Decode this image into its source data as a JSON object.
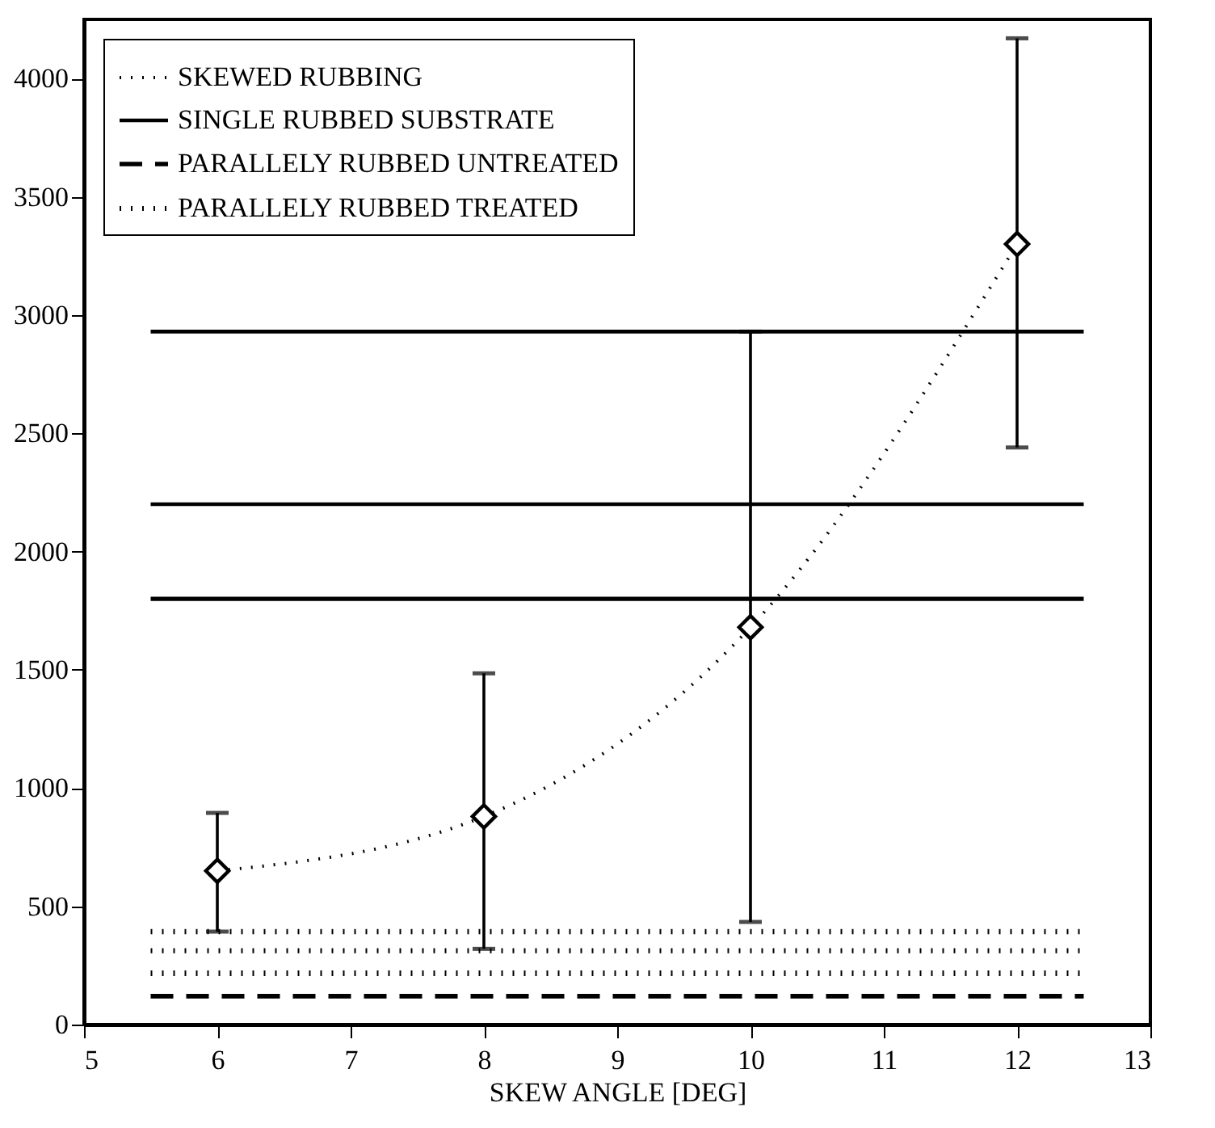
{
  "chart_data": {
    "type": "line",
    "xlabel": "SKEW ANGLE [DEG]",
    "xlim": [
      5,
      13
    ],
    "xticks": [
      5,
      6,
      7,
      8,
      9,
      10,
      11,
      12,
      13
    ],
    "ylim": [
      0,
      4250
    ],
    "yticks": [
      0,
      500,
      1000,
      1500,
      2000,
      2500,
      3000,
      3500,
      4000
    ],
    "legend": "top left",
    "grid": false,
    "series": [
      {
        "name": "SKEWED RUBBING",
        "color": "#000000",
        "x": [
          6,
          8,
          10,
          12
        ],
        "values": [
          650,
          880,
          1680,
          3300
        ],
        "errors": [
          [
            393,
            895
          ],
          [
            320,
            1485
          ],
          [
            434,
            2930
          ],
          [
            2440,
            4170
          ]
        ],
        "marker": "diamond",
        "line_style": "dotted"
      },
      {
        "name": "SINGLE RUBBED SUBSTRATE",
        "color": "#000000",
        "x": [
          5.5,
          12.5
        ],
        "values": [
          2200,
          2200
        ],
        "line_style": "solid"
      },
      {
        "color": "#000000",
        "x": [
          5.5,
          12.5
        ],
        "values": [
          2930,
          2930
        ],
        "line_style": "solid"
      },
      {
        "color": "#000000",
        "x": [
          5.5,
          12.5
        ],
        "values": [
          1800,
          1800
        ],
        "line_style": "solid"
      },
      {
        "name": "PARALLELY RUBBED UNTREATED",
        "color": "#000000",
        "x": [
          5.5,
          12.5
        ],
        "values": [
          120,
          120
        ],
        "line_style": "dashed"
      },
      {
        "name": "PARALLELY RUBBED TREATED",
        "color": "#000000",
        "x": [
          5.5,
          12.5
        ],
        "values": [
          312,
          312
        ],
        "line_style": "dotted"
      },
      {
        "color": "#000000",
        "x": [
          5.5,
          12.5
        ],
        "values": [
          393,
          393
        ],
        "line_style": "dotted"
      },
      {
        "color": "#000000",
        "x": [
          5.5,
          12.5
        ],
        "values": [
          217,
          217
        ],
        "line_style": "dotted"
      }
    ]
  }
}
